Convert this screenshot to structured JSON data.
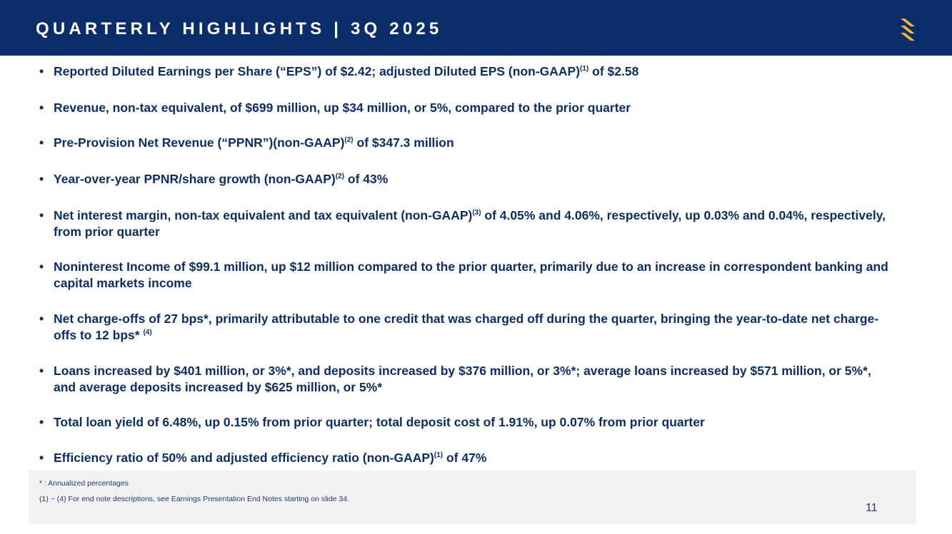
{
  "header": {
    "title": "QUARTERLY HIGHLIGHTS | 3Q 2025",
    "logo_icon": "stylized-s-logo-icon",
    "background_color": "#0b2e6b",
    "logo_color": "#f5b335"
  },
  "bullet_marker": "•",
  "highlights": [
    {
      "before": "Reported Diluted Earnings per Share (“EPS”) of $2.42; adjusted Diluted EPS (non-GAAP)",
      "note": "(1)",
      "after": " of $2.58"
    },
    {
      "before": "Revenue, non-tax equivalent, of $699 million, up $34 million, or 5%, compared to the prior quarter",
      "note": "",
      "after": ""
    },
    {
      "before": "Pre-Provision Net Revenue (“PPNR”)(non-GAAP)",
      "note": "(2)",
      "after": " of $347.3 million"
    },
    {
      "before": "Year-over-year PPNR/share growth (non-GAAP)",
      "note": "(2)",
      "after": " of 43%"
    },
    {
      "before": "Net interest margin, non-tax equivalent and tax equivalent (non-GAAP)",
      "note": "(3)",
      "after": " of 4.05% and 4.06%, respectively, up 0.03% and 0.04%, respectively, from prior quarter"
    },
    {
      "before": "Noninterest Income of $99.1 million, up $12 million compared to the prior quarter, primarily due to an increase in correspondent banking and capital markets income",
      "note": "",
      "after": ""
    },
    {
      "before": "Net charge-offs of 27 bps*, primarily attributable to one credit that was charged off during the quarter, bringing the year-to-date net charge-offs to 12 bps* ",
      "note": "(4)",
      "after": ""
    },
    {
      "before": "Loans increased by $401 million, or 3%*, and deposits increased by $376 million, or 3%*; average loans increased by $571 million, or 5%*, and average deposits increased by $625 million, or 5%*",
      "note": "",
      "after": ""
    },
    {
      "before": "Total loan yield of 6.48%, up 0.15% from prior quarter; total deposit cost of 1.91%, up 0.07% from prior quarter",
      "note": "",
      "after": ""
    },
    {
      "before": "Efficiency ratio of 50% and adjusted efficiency ratio (non-GAAP)",
      "note": "(1)",
      "after": " of 47%"
    }
  ],
  "footnotes": {
    "annualized": "* : Annualized percentages",
    "end_notes": "(1) ~ (4)  For end note descriptions, see Earnings Presentation End Notes starting on slide 34."
  },
  "page_number": "11"
}
